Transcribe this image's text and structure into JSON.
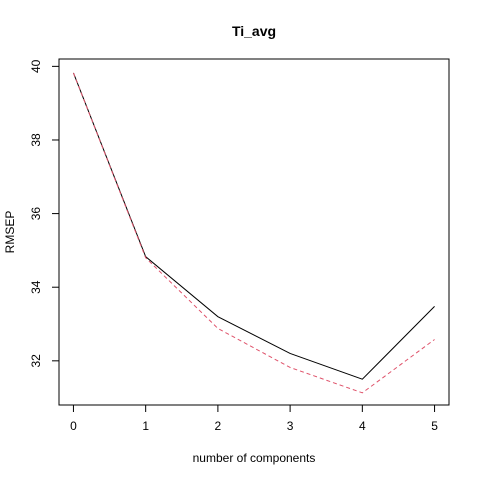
{
  "chart_data": {
    "type": "line",
    "title": "Ti_avg",
    "xlabel": "number of components",
    "ylabel": "RMSEP",
    "x": [
      0,
      1,
      2,
      3,
      4,
      5
    ],
    "xlim": [
      -0.2,
      5.2
    ],
    "ylim": [
      30.8,
      40.2
    ],
    "xticks": [
      "0",
      "1",
      "2",
      "3",
      "4",
      "5"
    ],
    "yticks": [
      "32",
      "34",
      "36",
      "38",
      "40"
    ],
    "grid": false,
    "series": [
      {
        "values": [
          39.82,
          34.83,
          33.2,
          32.2,
          31.5,
          33.48
        ],
        "color": "#000000",
        "dash": "solid"
      },
      {
        "values": [
          39.82,
          34.8,
          32.88,
          31.82,
          31.13,
          32.58
        ],
        "color": "#DF536B",
        "dash": "dashed"
      }
    ]
  }
}
